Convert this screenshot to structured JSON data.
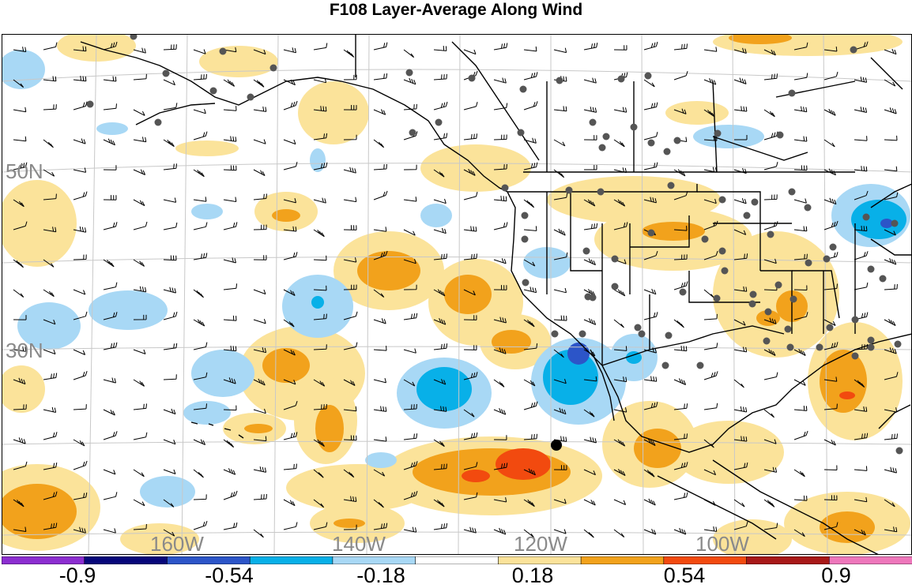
{
  "title": "F108 Layer-Average Along Wind",
  "map": {
    "lat_labels": [
      "50N",
      "30N"
    ],
    "lon_labels": [
      "160W",
      "140W",
      "120W",
      "100W"
    ],
    "marker": "black station dot"
  },
  "colorbar": {
    "colors": [
      "#8c2ed0",
      "#07077a",
      "#2c55c8",
      "#08b0e8",
      "#a8d8f5",
      "#ffffff",
      "#fbe39a",
      "#f2a21c",
      "#f24a0f",
      "#a81818",
      "#ee77bb"
    ],
    "labels": [
      "-0.9",
      "-0.54",
      "-0.18",
      "0.18",
      "0.54",
      "0.9"
    ]
  },
  "colors": {
    "light_blue": "#a8d8f5",
    "cyan": "#08b0e8",
    "medium_blue": "#2c55c8",
    "light_yellow": "#fbe39a",
    "orange": "#f2a21c",
    "red_orange": "#f24a0f",
    "station_dot": "#555555",
    "grid": "#c8c8c8"
  }
}
